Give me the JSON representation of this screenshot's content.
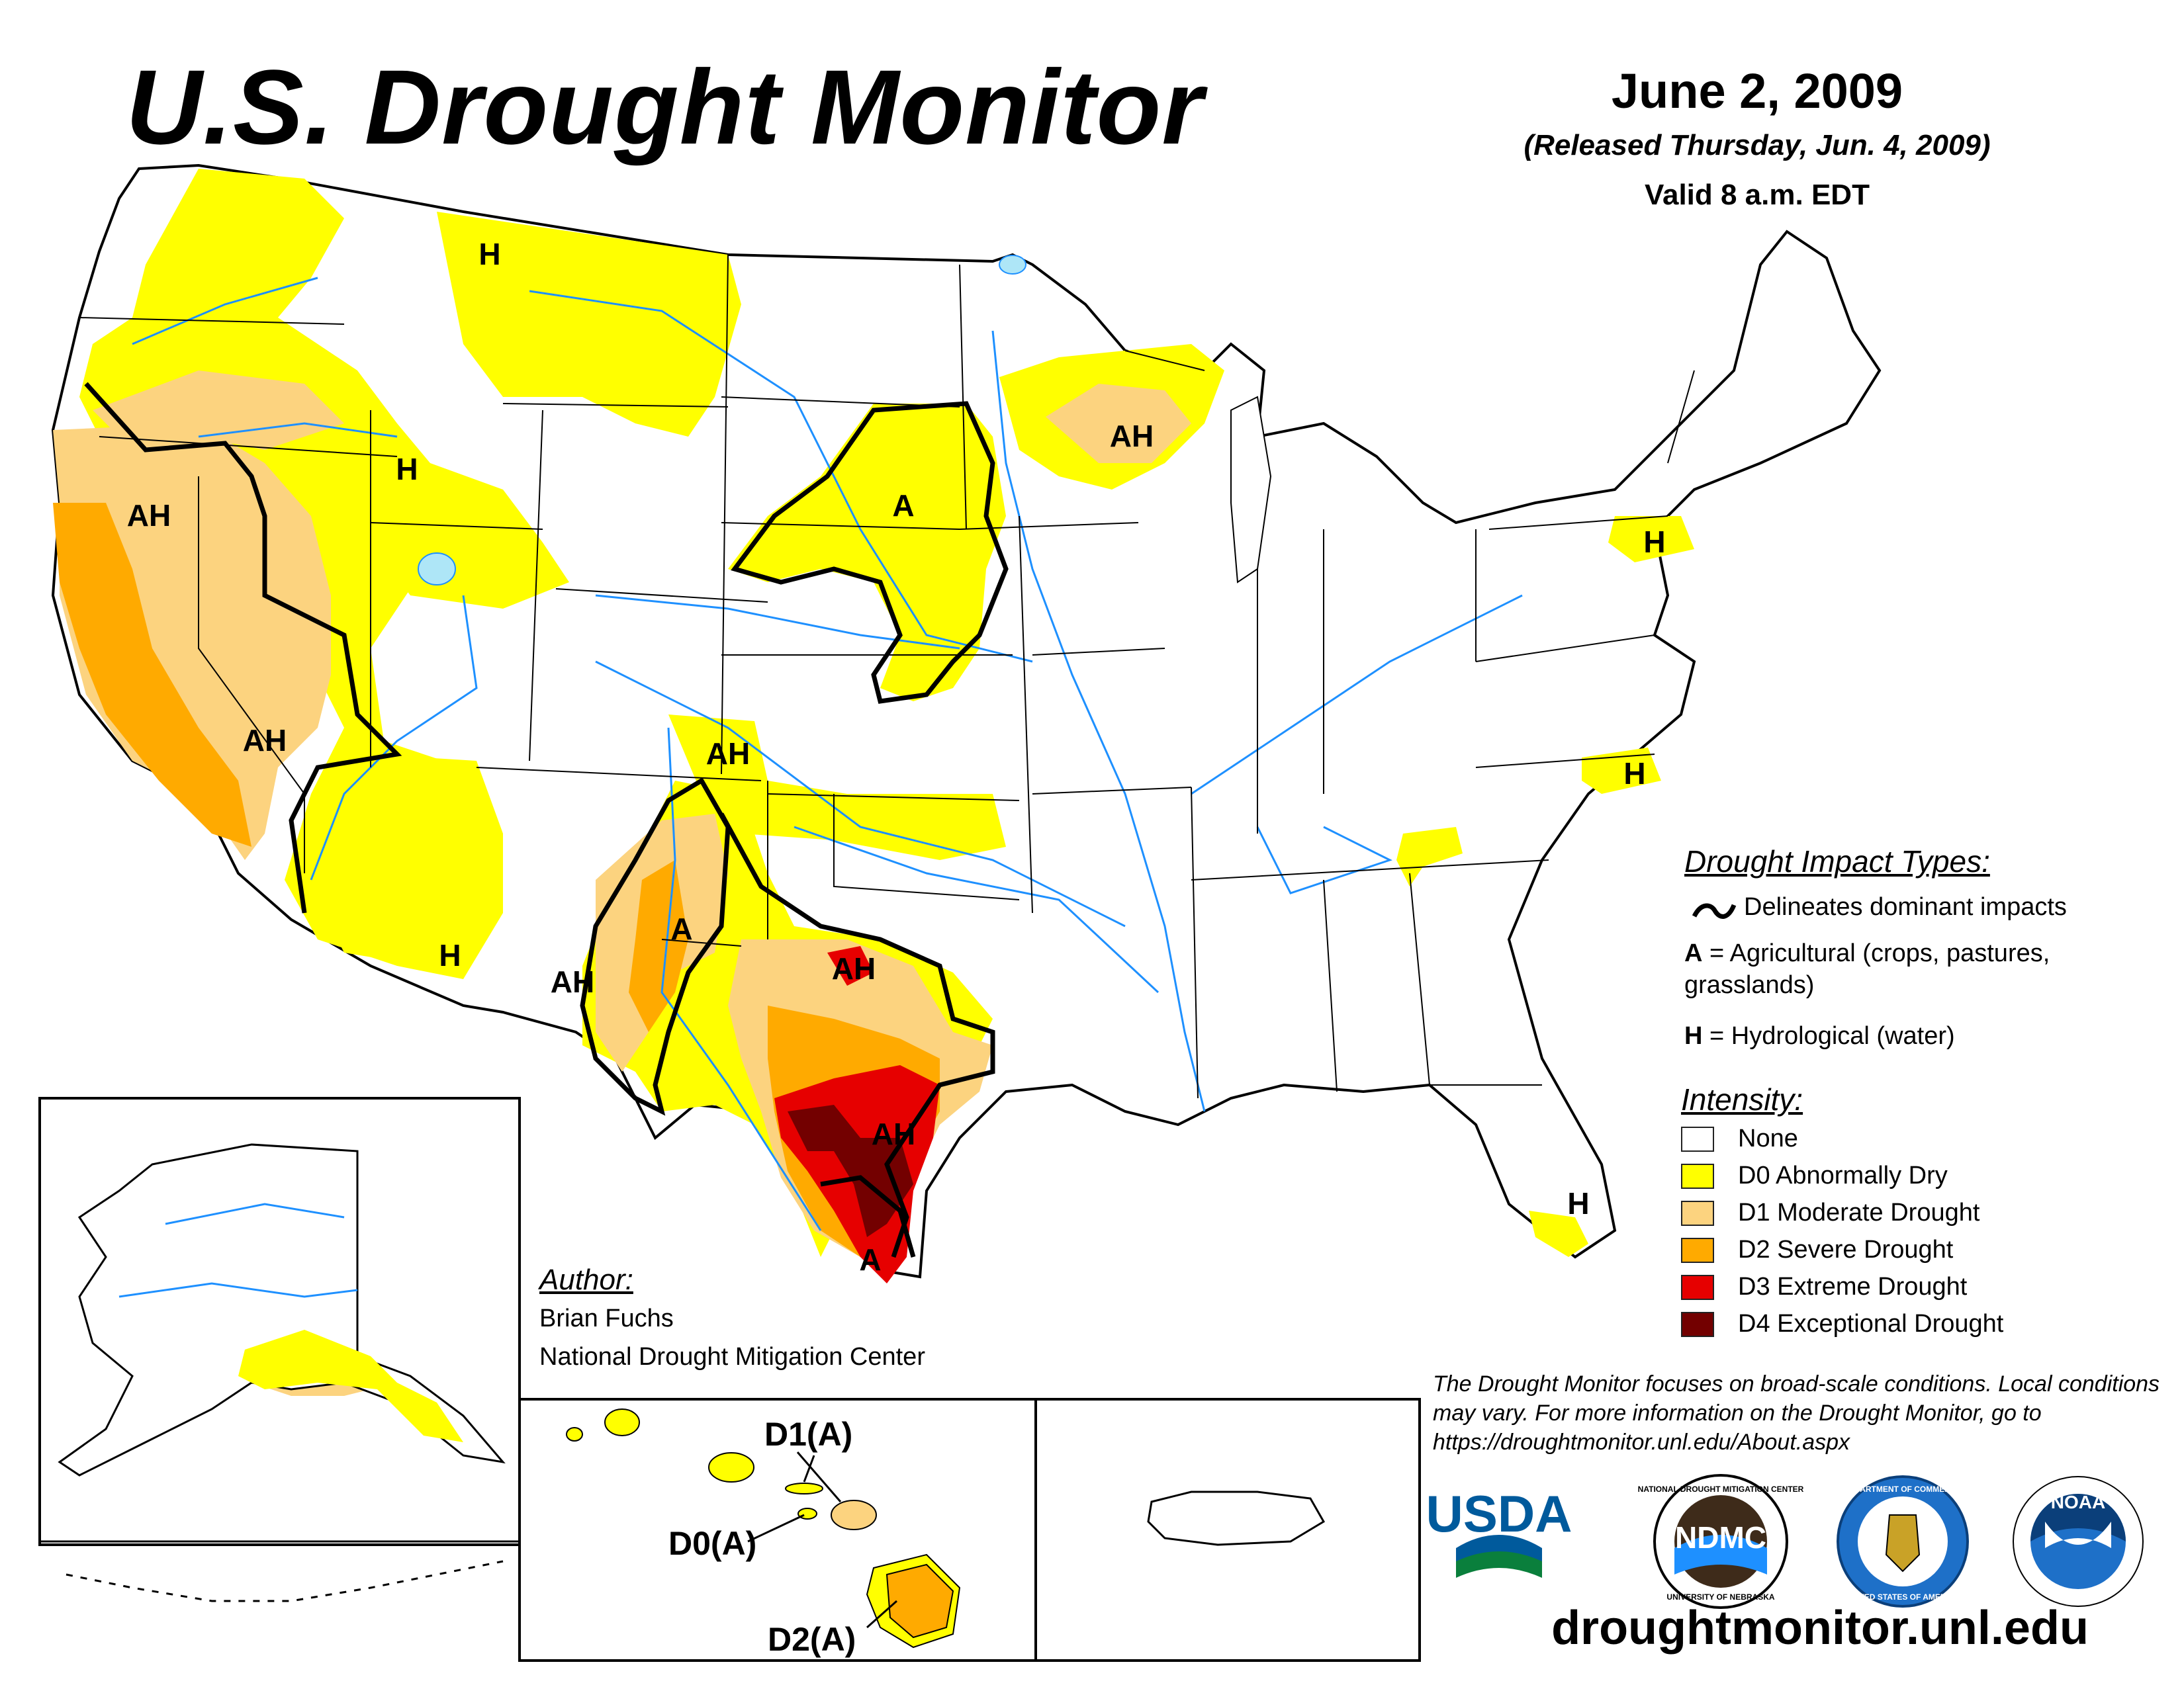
{
  "title": "U.S. Drought Monitor",
  "date": "June 2, 2009",
  "released": "(Released Thursday, Jun. 4, 2009)",
  "valid": "Valid 8 a.m. EDT",
  "impact_types": {
    "heading": "Drought Impact Types:",
    "delineates": "Delineates dominant impacts",
    "agricultural_key": "A",
    "agricultural_text": " = Agricultural (crops, pastures,",
    "agricultural_text2": "grasslands)",
    "hydrological_key": "H",
    "hydrological_text": " = Hydrological (water)"
  },
  "intensity": {
    "heading": "Intensity:",
    "items": [
      {
        "label": "None",
        "color": "#ffffff"
      },
      {
        "label": "D0 Abnormally Dry",
        "color": "#ffff00"
      },
      {
        "label": "D1 Moderate Drought",
        "color": "#fcd37f"
      },
      {
        "label": "D2 Severe Drought",
        "color": "#ffaa00"
      },
      {
        "label": "D3 Extreme Drought",
        "color": "#e60000"
      },
      {
        "label": "D4 Exceptional Drought",
        "color": "#730000"
      }
    ]
  },
  "author": {
    "heading": "Author:",
    "name": "Brian Fuchs",
    "org": "National Drought Mitigation Center"
  },
  "note": "The Drought Monitor focuses on broad-scale conditions. Local conditions may vary. For more information on the Drought Monitor, go to https://droughtmonitor.unl.edu/About.aspx",
  "website": "droughtmonitor.unl.edu",
  "map_labels": {
    "h_montana": "H",
    "h_idaho": "H",
    "h_arizona": "H",
    "h_pa": "H",
    "h_nc": "H",
    "h_florida": "H",
    "ah_california": "AH",
    "ah_nevada": "AH",
    "ah_colorado": "AH",
    "ah_nm": "AH",
    "ah_oklahoma": "AH",
    "ah_texas": "AH",
    "ah_wisconsin": "AH",
    "a_plains": "A",
    "a_nm": "A",
    "a_texas": "A"
  },
  "hawaii_labels": {
    "d1": "D1(A)",
    "d0": "D0(A)",
    "d2": "D2(A)"
  },
  "logos": {
    "usda": "USDA",
    "ndmc": "NDMC",
    "ndmc_ring": "NATIONAL DROUGHT MITIGATION CENTER",
    "ndmc_ring_bottom": "UNIVERSITY OF NEBRASKA",
    "commerce_ring": "DEPARTMENT OF COMMERCE",
    "commerce_ring_bottom": "UNITED STATES OF AMERICA",
    "noaa": "NOAA"
  },
  "colors": {
    "d0": "#ffff00",
    "d1": "#fcd37f",
    "d2": "#ffaa00",
    "d3": "#e60000",
    "d4": "#730000",
    "water": "#1e90ff"
  }
}
